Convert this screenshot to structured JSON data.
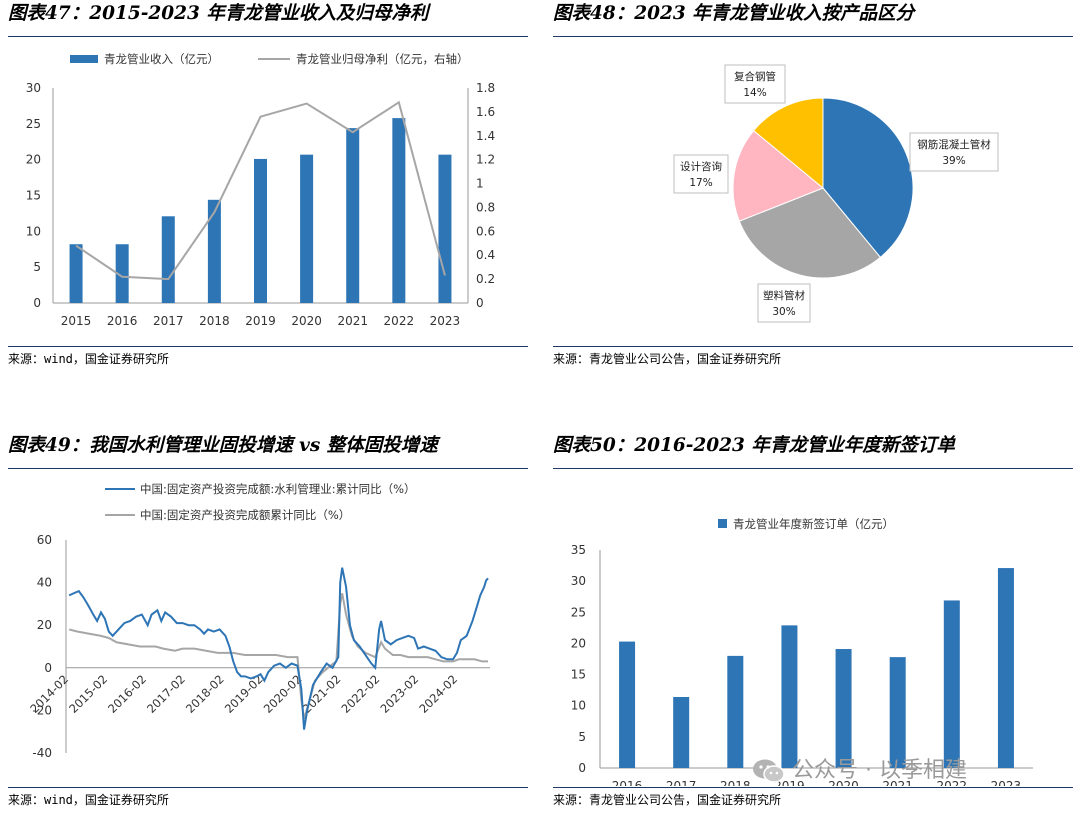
{
  "panels": {
    "p47": {
      "title": "图表47：2015-2023 年青龙管业收入及归母净利",
      "source": "来源：wind，国金证券研究所"
    },
    "p48": {
      "title": "图表48：2023 年青龙管业收入按产品区分",
      "source": "来源：青龙管业公司公告，国金证券研究所"
    },
    "p49": {
      "title": "图表49：我国水利管理业固投增速 vs 整体固投增速",
      "source": "来源：wind，国金证券研究所"
    },
    "p50": {
      "title": "图表50：2016-2023 年青龙管业年度新签订单",
      "source": "来源：青龙管业公司公告，国金证券研究所"
    }
  },
  "watermark": {
    "text": "公众号 · 以季相建",
    "icon": "wechat-icon"
  },
  "colors": {
    "blue": "#2e75b6",
    "gray": "#a6a6a6",
    "pink": "#ffb6c1",
    "yellow": "#ffc000",
    "rule": "#1f3864"
  },
  "chart_data": [
    {
      "id": "p47",
      "type": "bar",
      "categories": [
        "2015",
        "2016",
        "2017",
        "2018",
        "2019",
        "2020",
        "2021",
        "2022",
        "2023"
      ],
      "series": [
        {
          "name": "青龙管业收入（亿元）",
          "type": "bar",
          "axis": "left",
          "values": [
            8.2,
            8.2,
            12.1,
            14.4,
            20.1,
            20.7,
            24.4,
            25.8,
            20.7
          ]
        },
        {
          "name": "青龙管业归母净利（亿元，右轴）",
          "type": "line",
          "axis": "right",
          "values": [
            0.48,
            0.22,
            0.2,
            0.76,
            1.56,
            1.67,
            1.43,
            1.68,
            0.23
          ]
        }
      ],
      "ylim": [
        0,
        30
      ],
      "yticks": [
        0,
        5,
        10,
        15,
        20,
        25,
        30
      ],
      "y2lim": [
        0,
        1.8
      ],
      "y2ticks": [
        "0",
        "0.2",
        "0.4",
        "0.6",
        "0.8",
        "1",
        "1.2",
        "1.4",
        "1.6",
        "1.8"
      ],
      "legend": "top",
      "grid": false
    },
    {
      "id": "p48",
      "type": "pie",
      "slices": [
        {
          "label": "钢筋混凝土管材",
          "value": 39,
          "pct": "39%",
          "color": "#2e75b6"
        },
        {
          "label": "塑料管材",
          "value": 30,
          "pct": "30%",
          "color": "#a6a6a6"
        },
        {
          "label": "设计咨询",
          "value": 17,
          "pct": "17%",
          "color": "#ffb6c1"
        },
        {
          "label": "复合钢管",
          "value": 14,
          "pct": "14%",
          "color": "#ffc000"
        }
      ]
    },
    {
      "id": "p49",
      "type": "line",
      "series": [
        {
          "name": "中国:固定资产投资完成额:水利管理业:累计同比（%）",
          "points": [
            [
              2014.08,
              34
            ],
            [
              2014.2,
              35
            ],
            [
              2014.33,
              36
            ],
            [
              2014.45,
              33
            ],
            [
              2014.58,
              29
            ],
            [
              2014.7,
              25
            ],
            [
              2014.8,
              22
            ],
            [
              2014.9,
              26
            ],
            [
              2015.0,
              23
            ],
            [
              2015.1,
              17
            ],
            [
              2015.2,
              15
            ],
            [
              2015.35,
              18
            ],
            [
              2015.5,
              21
            ],
            [
              2015.65,
              22
            ],
            [
              2015.8,
              24
            ],
            [
              2015.95,
              25
            ],
            [
              2016.1,
              20
            ],
            [
              2016.2,
              25
            ],
            [
              2016.35,
              27
            ],
            [
              2016.45,
              22
            ],
            [
              2016.55,
              26
            ],
            [
              2016.7,
              24
            ],
            [
              2016.85,
              21
            ],
            [
              2017.0,
              21
            ],
            [
              2017.15,
              20
            ],
            [
              2017.3,
              20
            ],
            [
              2017.45,
              18
            ],
            [
              2017.55,
              16
            ],
            [
              2017.65,
              18
            ],
            [
              2017.8,
              17
            ],
            [
              2017.95,
              18
            ],
            [
              2018.1,
              15
            ],
            [
              2018.2,
              10
            ],
            [
              2018.3,
              3
            ],
            [
              2018.4,
              -2
            ],
            [
              2018.5,
              -4
            ],
            [
              2018.6,
              -4
            ],
            [
              2018.75,
              -5
            ],
            [
              2018.9,
              -4
            ],
            [
              2019.0,
              -3
            ],
            [
              2019.1,
              -6
            ],
            [
              2019.2,
              -2
            ],
            [
              2019.35,
              1
            ],
            [
              2019.5,
              2
            ],
            [
              2019.65,
              0
            ],
            [
              2019.8,
              2
            ],
            [
              2019.95,
              1
            ],
            [
              2020.05,
              -10
            ],
            [
              2020.12,
              -29
            ],
            [
              2020.2,
              -20
            ],
            [
              2020.35,
              -8
            ],
            [
              2020.55,
              -2
            ],
            [
              2020.7,
              2
            ],
            [
              2020.85,
              0
            ],
            [
              2021.0,
              5
            ],
            [
              2021.05,
              40
            ],
            [
              2021.1,
              47
            ],
            [
              2021.2,
              38
            ],
            [
              2021.3,
              20
            ],
            [
              2021.4,
              13
            ],
            [
              2021.55,
              10
            ],
            [
              2021.7,
              6
            ],
            [
              2021.85,
              2
            ],
            [
              2021.95,
              0
            ],
            [
              2022.05,
              18
            ],
            [
              2022.1,
              22
            ],
            [
              2022.2,
              13
            ],
            [
              2022.35,
              11
            ],
            [
              2022.5,
              13
            ],
            [
              2022.65,
              14
            ],
            [
              2022.8,
              15
            ],
            [
              2022.95,
              14
            ],
            [
              2023.05,
              9
            ],
            [
              2023.2,
              10
            ],
            [
              2023.35,
              9
            ],
            [
              2023.5,
              8
            ],
            [
              2023.65,
              5
            ],
            [
              2023.8,
              4
            ],
            [
              2023.95,
              4
            ],
            [
              2024.05,
              7
            ],
            [
              2024.15,
              13
            ],
            [
              2024.3,
              15
            ],
            [
              2024.45,
              22
            ],
            [
              2024.55,
              28
            ],
            [
              2024.65,
              34
            ],
            [
              2024.75,
              38
            ],
            [
              2024.8,
              41
            ],
            [
              2024.85,
              42
            ]
          ]
        },
        {
          "name": "中国:固定资产投资完成额累计同比（%）",
          "points": [
            [
              2014.08,
              18
            ],
            [
              2014.3,
              17
            ],
            [
              2014.6,
              16
            ],
            [
              2014.9,
              15
            ],
            [
              2015.1,
              14
            ],
            [
              2015.3,
              12
            ],
            [
              2015.6,
              11
            ],
            [
              2015.9,
              10
            ],
            [
              2016.1,
              10
            ],
            [
              2016.3,
              10
            ],
            [
              2016.5,
              9
            ],
            [
              2016.8,
              8
            ],
            [
              2017.0,
              9
            ],
            [
              2017.3,
              9
            ],
            [
              2017.6,
              8
            ],
            [
              2017.9,
              7
            ],
            [
              2018.1,
              7
            ],
            [
              2018.3,
              7
            ],
            [
              2018.6,
              6
            ],
            [
              2018.9,
              6
            ],
            [
              2019.1,
              6
            ],
            [
              2019.4,
              6
            ],
            [
              2019.7,
              5
            ],
            [
              2019.95,
              5
            ],
            [
              2020.05,
              -15
            ],
            [
              2020.12,
              -24
            ],
            [
              2020.25,
              -16
            ],
            [
              2020.4,
              -6
            ],
            [
              2020.6,
              -2
            ],
            [
              2020.8,
              1
            ],
            [
              2020.95,
              3
            ],
            [
              2021.05,
              30
            ],
            [
              2021.1,
              35
            ],
            [
              2021.2,
              25
            ],
            [
              2021.35,
              15
            ],
            [
              2021.5,
              10
            ],
            [
              2021.7,
              7
            ],
            [
              2021.95,
              5
            ],
            [
              2022.1,
              12
            ],
            [
              2022.2,
              9
            ],
            [
              2022.4,
              6
            ],
            [
              2022.6,
              6
            ],
            [
              2022.8,
              5
            ],
            [
              2022.95,
              5
            ],
            [
              2023.1,
              5
            ],
            [
              2023.3,
              5
            ],
            [
              2023.5,
              4
            ],
            [
              2023.7,
              3
            ],
            [
              2023.95,
              3
            ],
            [
              2024.1,
              4
            ],
            [
              2024.3,
              4
            ],
            [
              2024.5,
              4
            ],
            [
              2024.7,
              3
            ],
            [
              2024.85,
              3
            ]
          ]
        }
      ],
      "xticks": [
        "2014-02",
        "2015-02",
        "2016-02",
        "2017-02",
        "2018-02",
        "2019-02",
        "2020-02",
        "2021-02",
        "2022-02",
        "2023-02",
        "2024-02"
      ],
      "xtick_values": [
        2014.08,
        2015.08,
        2016.08,
        2017.08,
        2018.08,
        2019.08,
        2020.08,
        2021.08,
        2022.08,
        2023.08,
        2024.08
      ],
      "xlim": [
        2014.0,
        2024.9
      ],
      "ylim": [
        -40,
        60
      ],
      "yticks": [
        -40,
        -20,
        0,
        20,
        40,
        60
      ],
      "legend": "top",
      "grid": false
    },
    {
      "id": "p50",
      "type": "bar",
      "categories": [
        "2016",
        "2017",
        "2018",
        "2019",
        "2020",
        "2021",
        "2022",
        "2023"
      ],
      "series": [
        {
          "name": "青龙管业年度新签订单（亿元）",
          "values": [
            20.3,
            11.4,
            18.0,
            22.9,
            19.1,
            17.8,
            26.9,
            32.1
          ]
        }
      ],
      "ylim": [
        0,
        35
      ],
      "yticks": [
        0,
        5,
        10,
        15,
        20,
        25,
        30,
        35
      ],
      "legend": "top",
      "grid": false
    }
  ]
}
